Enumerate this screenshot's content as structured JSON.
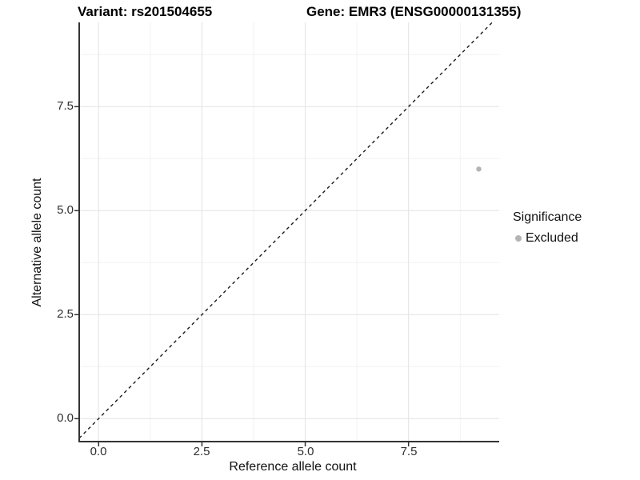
{
  "titles": {
    "variant": "Variant: rs201504655",
    "gene": "Gene: EMR3 (ENSG00000131355)"
  },
  "axes": {
    "x": {
      "label": "Reference allele count",
      "tick_labels": [
        "0.0",
        "2.5",
        "5.0",
        "7.5"
      ],
      "tick_values": [
        0,
        2.5,
        5,
        7.5
      ]
    },
    "y": {
      "label": "Alternative allele count",
      "tick_labels": [
        "0.0",
        "2.5",
        "5.0",
        "7.5"
      ],
      "tick_values": [
        0,
        2.5,
        5,
        7.5
      ]
    }
  },
  "legend": {
    "title": "Significance",
    "items": [
      {
        "label": "Excluded",
        "color": "#b4b4b4"
      }
    ]
  },
  "colors": {
    "background": "#ffffff",
    "axis_line": "#333333",
    "major_grid": "#e6e6e6",
    "minor_grid": "#f2f2f2",
    "reference_line": "#1a1a1a",
    "excluded_point": "#b4b4b4"
  },
  "chart_data": {
    "type": "scatter",
    "title": "Variant: rs201504655 | Gene: EMR3 (ENSG00000131355)",
    "xlabel": "Reference allele count",
    "ylabel": "Alternative allele count",
    "x_ticks": [
      0,
      2.5,
      5,
      7.5
    ],
    "y_ticks": [
      0,
      2.5,
      5,
      7.5
    ],
    "xlim": [
      -0.47,
      9.69
    ],
    "ylim": [
      -0.55,
      9.53
    ],
    "grid": "major and minor gridlines, light gray on white",
    "legend_position": "right",
    "series": [
      {
        "name": "Excluded",
        "color": "#b4b4b4",
        "point_radius": 3.2,
        "points": [
          [
            9.2,
            6.0
          ]
        ]
      }
    ],
    "reference_line": {
      "kind": "identity",
      "slope": 1,
      "intercept": 0,
      "style": "dashed",
      "color": "#1a1a1a"
    }
  }
}
